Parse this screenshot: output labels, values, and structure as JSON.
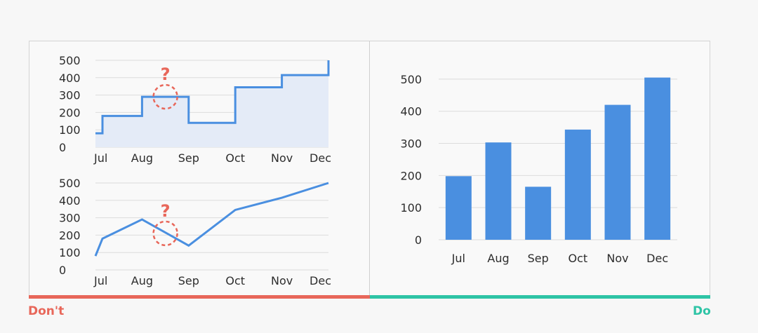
{
  "labels": {
    "dont": "Don't",
    "do": "Do"
  },
  "colors": {
    "line": "#4a8fe0",
    "bar": "#4a8fe0",
    "area_fill": "#e4ebf7",
    "question": "#e8675a",
    "dont": "#e8675a",
    "do": "#2ec4a6",
    "grid": "#dcdcdc"
  },
  "chart_data": [
    {
      "type": "line",
      "step": true,
      "area": true,
      "categories": [
        "Jul",
        "Aug",
        "Sep",
        "Oct",
        "Nov",
        "Dec"
      ],
      "values": [
        180,
        290,
        140,
        345,
        415,
        500
      ],
      "first_value": 80,
      "yticks": [
        0,
        100,
        200,
        300,
        400,
        500
      ],
      "ylim": [
        0,
        500
      ],
      "grid": true,
      "annotation": {
        "symbol": "?",
        "at_x": "Aug-Sep midpoint",
        "at_y": 290
      }
    },
    {
      "type": "line",
      "categories": [
        "Jul",
        "Aug",
        "Sep",
        "Oct",
        "Nov",
        "Dec"
      ],
      "values": [
        180,
        290,
        140,
        345,
        415,
        500
      ],
      "first_value": 80,
      "yticks": [
        0,
        100,
        200,
        300,
        400,
        500
      ],
      "ylim": [
        0,
        500
      ],
      "grid": true,
      "annotation": {
        "symbol": "?",
        "at_x": "Aug-Sep midpoint",
        "at_y": 210
      }
    },
    {
      "type": "bar",
      "categories": [
        "Jul",
        "Aug",
        "Sep",
        "Oct",
        "Nov",
        "Dec"
      ],
      "values": [
        198,
        303,
        165,
        343,
        420,
        505
      ],
      "yticks": [
        0,
        100,
        200,
        300,
        400,
        500
      ],
      "ylim": [
        0,
        550
      ],
      "grid": true
    }
  ]
}
